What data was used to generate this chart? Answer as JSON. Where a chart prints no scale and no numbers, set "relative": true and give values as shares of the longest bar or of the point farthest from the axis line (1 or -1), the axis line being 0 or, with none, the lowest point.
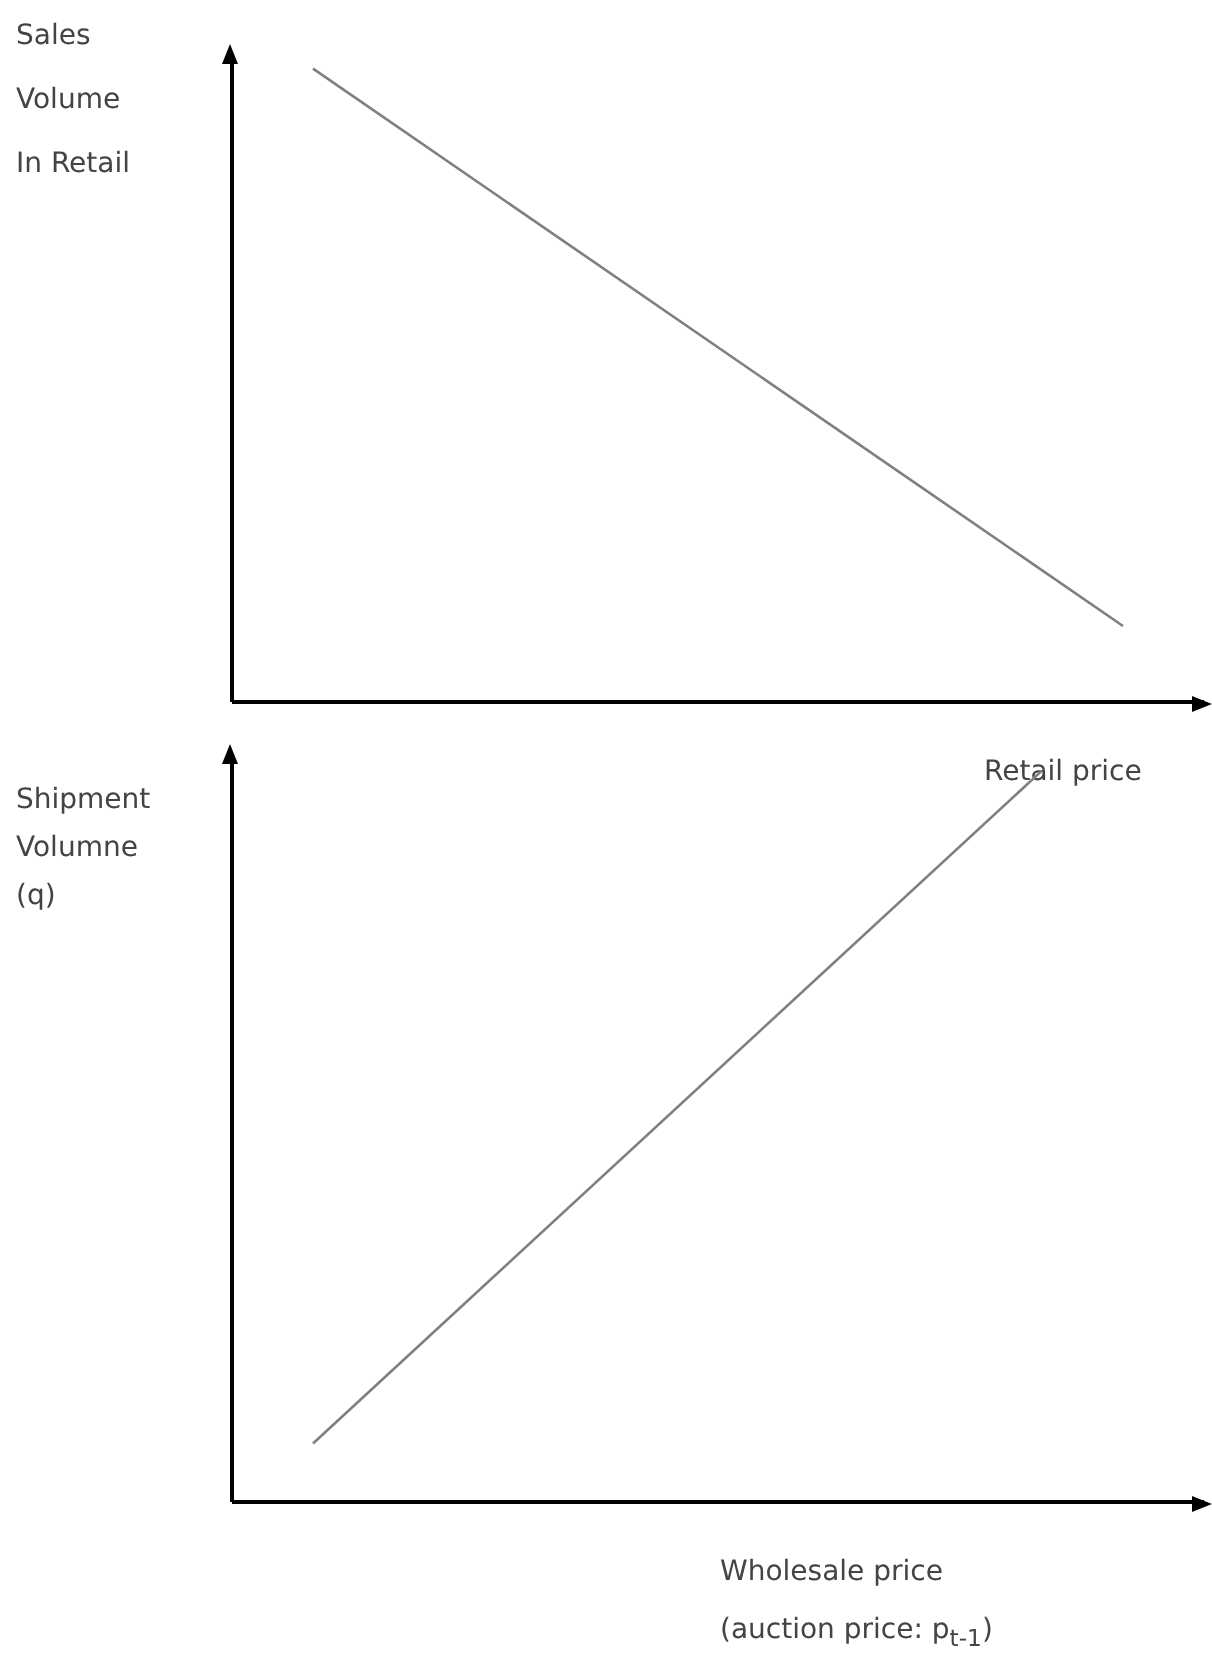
{
  "chart_data": [
    {
      "type": "line",
      "relative": true,
      "ylabel": "Sales\nVolume\nIn Retail",
      "xlabel": "Retail price",
      "marker": "none",
      "categories": [
        null,
        null,
        null,
        null,
        null,
        null,
        null,
        null,
        null,
        null,
        null,
        null
      ],
      "series": [
        {
          "color": "#7f7f7f",
          "values": [
            null,
            1,
            null,
            null,
            null,
            null,
            null,
            null,
            null,
            null,
            null,
            0.12
          ]
        }
      ]
    },
    {
      "type": "line",
      "relative": true,
      "ylabel": "Shipment\nVolumne\n(q)",
      "xlabel": "Wholesale price\n(auction price: p$_{t-1}$)",
      "marker": "none",
      "categories": [
        null,
        null,
        null,
        null,
        null,
        null,
        null,
        null,
        null,
        null,
        null,
        null
      ],
      "series": [
        {
          "color": "#7f7f7f",
          "values": [
            null,
            0.08,
            null,
            null,
            null,
            null,
            null,
            null,
            null,
            null,
            1,
            null
          ]
        }
      ]
    }
  ]
}
